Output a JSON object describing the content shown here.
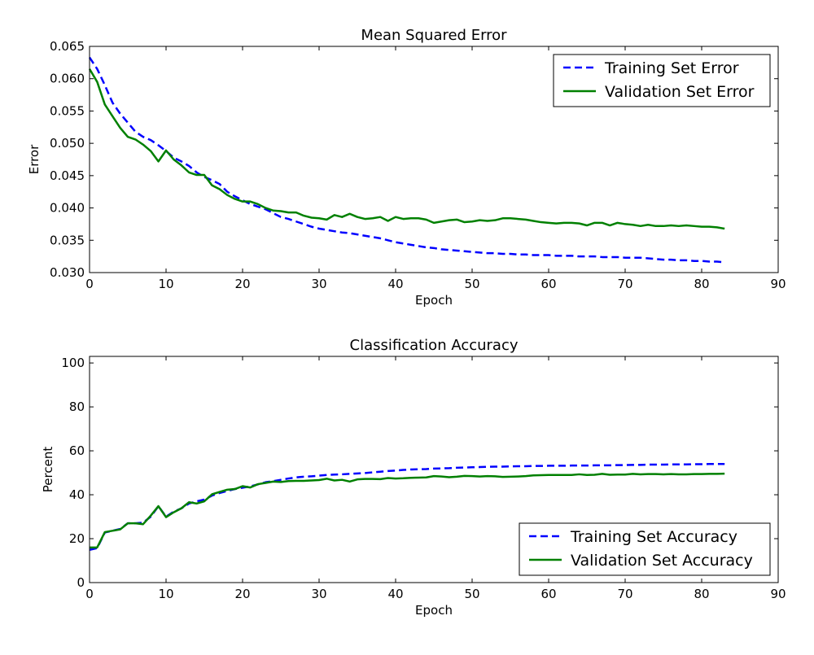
{
  "chart_data": [
    {
      "type": "line",
      "title": "Mean Squared Error",
      "xlabel": "Epoch",
      "ylabel": "Error",
      "xlim": [
        0,
        90
      ],
      "ylim": [
        0.03,
        0.065
      ],
      "xticks": [
        "0",
        "10",
        "20",
        "30",
        "40",
        "50",
        "60",
        "70",
        "80",
        "90"
      ],
      "yticks": [
        "0.030",
        "0.035",
        "0.040",
        "0.045",
        "0.050",
        "0.055",
        "0.060",
        "0.065"
      ],
      "grid": false,
      "legend_position": "top-right",
      "x_start": 0,
      "series": [
        {
          "name": "Training Set Error",
          "color": "#0000ff",
          "style": "dashed",
          "values": [
            0.0633,
            0.0615,
            0.059,
            0.0563,
            0.0546,
            0.0532,
            0.0518,
            0.051,
            0.0505,
            0.0497,
            0.0488,
            0.0478,
            0.0472,
            0.0465,
            0.0455,
            0.0448,
            0.0443,
            0.0437,
            0.0425,
            0.0418,
            0.0412,
            0.0406,
            0.0402,
            0.0398,
            0.0392,
            0.0386,
            0.0383,
            0.0379,
            0.0375,
            0.0371,
            0.0368,
            0.0366,
            0.0364,
            0.0362,
            0.0361,
            0.0359,
            0.0357,
            0.0355,
            0.0353,
            0.035,
            0.0347,
            0.0345,
            0.0343,
            0.0341,
            0.0339,
            0.0338,
            0.0336,
            0.0335,
            0.0334,
            0.0333,
            0.0332,
            0.0331,
            0.033,
            0.033,
            0.0329,
            0.0329,
            0.0328,
            0.0328,
            0.0327,
            0.0327,
            0.0327,
            0.0326,
            0.0326,
            0.0326,
            0.0325,
            0.0325,
            0.0325,
            0.0324,
            0.0324,
            0.0324,
            0.0323,
            0.0323,
            0.0323,
            0.0322,
            0.0321,
            0.032,
            0.032,
            0.0319,
            0.0319,
            0.0318,
            0.0318,
            0.0317,
            0.0317,
            0.0316
          ]
        },
        {
          "name": "Validation Set Error",
          "color": "#008000",
          "style": "solid",
          "values": [
            0.0615,
            0.0595,
            0.056,
            0.0542,
            0.0524,
            0.051,
            0.0506,
            0.0498,
            0.0488,
            0.0472,
            0.0489,
            0.0475,
            0.0466,
            0.0455,
            0.0451,
            0.0451,
            0.0435,
            0.0429,
            0.042,
            0.0414,
            0.041,
            0.041,
            0.0406,
            0.04,
            0.0396,
            0.0395,
            0.0393,
            0.0393,
            0.0388,
            0.0385,
            0.0384,
            0.0382,
            0.0389,
            0.0386,
            0.0391,
            0.0386,
            0.0383,
            0.0384,
            0.0386,
            0.038,
            0.0386,
            0.0383,
            0.0384,
            0.0384,
            0.0382,
            0.0377,
            0.0379,
            0.0381,
            0.0382,
            0.0378,
            0.0379,
            0.0381,
            0.038,
            0.0381,
            0.0384,
            0.0384,
            0.0383,
            0.0382,
            0.038,
            0.0378,
            0.0377,
            0.0376,
            0.0377,
            0.0377,
            0.0376,
            0.0373,
            0.0377,
            0.0377,
            0.0373,
            0.0377,
            0.0375,
            0.0374,
            0.0372,
            0.0374,
            0.0372,
            0.0372,
            0.0373,
            0.0372,
            0.0373,
            0.0372,
            0.0371,
            0.0371,
            0.037,
            0.0368
          ]
        }
      ]
    },
    {
      "type": "line",
      "title": "Classification Accuracy",
      "xlabel": "Epoch",
      "ylabel": "Percent",
      "xlim": [
        0,
        90
      ],
      "ylim": [
        0,
        103
      ],
      "xticks": [
        "0",
        "10",
        "20",
        "30",
        "40",
        "50",
        "60",
        "70",
        "80",
        "90"
      ],
      "yticks": [
        "0",
        "20",
        "40",
        "60",
        "80",
        "100"
      ],
      "grid": false,
      "legend_position": "bottom-right",
      "x_start": 0,
      "series": [
        {
          "name": "Training Set Accuracy",
          "color": "#0000ff",
          "style": "dashed",
          "values": [
            14.9,
            15.7,
            22.8,
            23.6,
            24.4,
            27.0,
            27.0,
            27.3,
            30.0,
            34.8,
            30.0,
            32.3,
            33.8,
            36.0,
            37.0,
            37.8,
            39.6,
            40.8,
            41.7,
            42.6,
            43.2,
            43.8,
            44.7,
            45.7,
            46.2,
            46.8,
            47.4,
            47.9,
            48.2,
            48.4,
            48.7,
            49.0,
            49.2,
            49.3,
            49.5,
            49.7,
            49.9,
            50.2,
            50.5,
            50.8,
            51.0,
            51.3,
            51.5,
            51.6,
            51.7,
            51.9,
            52.0,
            52.1,
            52.3,
            52.4,
            52.5,
            52.6,
            52.7,
            52.8,
            52.8,
            52.9,
            53.0,
            53.0,
            53.1,
            53.1,
            53.2,
            53.2,
            53.2,
            53.3,
            53.3,
            53.3,
            53.4,
            53.4,
            53.4,
            53.5,
            53.5,
            53.6,
            53.6,
            53.7,
            53.7,
            53.7,
            53.8,
            53.8,
            53.8,
            53.9,
            53.9,
            54.0,
            54.0,
            54.0
          ]
        },
        {
          "name": "Validation Set Accuracy",
          "color": "#008000",
          "style": "solid",
          "values": [
            16.0,
            16.0,
            23.0,
            23.6,
            24.2,
            27.0,
            27.0,
            26.6,
            30.5,
            34.8,
            29.8,
            32.0,
            33.8,
            36.6,
            36.0,
            37.0,
            40.2,
            41.3,
            42.3,
            42.6,
            43.9,
            43.3,
            44.8,
            45.4,
            46.0,
            45.8,
            46.2,
            46.3,
            46.3,
            46.5,
            46.7,
            47.3,
            46.5,
            46.8,
            46.0,
            47.0,
            47.2,
            47.2,
            47.1,
            47.6,
            47.4,
            47.5,
            47.7,
            47.8,
            47.9,
            48.5,
            48.3,
            48.0,
            48.2,
            48.6,
            48.5,
            48.3,
            48.5,
            48.4,
            48.1,
            48.2,
            48.3,
            48.5,
            48.8,
            48.9,
            49.0,
            49.0,
            49.0,
            49.0,
            49.3,
            49.0,
            49.1,
            49.5,
            49.1,
            49.2,
            49.2,
            49.5,
            49.3,
            49.4,
            49.4,
            49.3,
            49.4,
            49.3,
            49.3,
            49.4,
            49.4,
            49.5,
            49.5,
            49.6
          ]
        }
      ]
    }
  ]
}
